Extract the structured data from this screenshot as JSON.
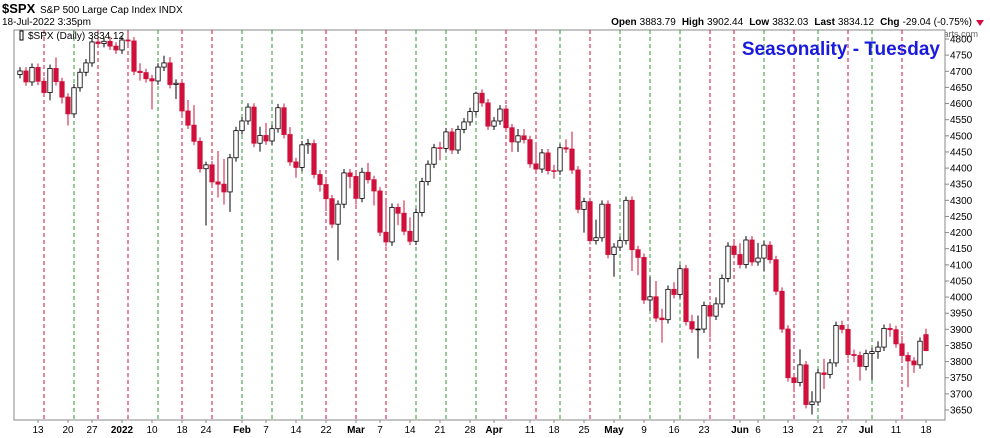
{
  "header": {
    "symbol": "$SPX",
    "name": "S&P 500 Large Cap Index",
    "exchange": "INDX",
    "timestamp": "18-Jul-2022 3:35pm",
    "copyright": "©StockCharts.com",
    "quote": [
      {
        "label": "Open",
        "value": "3883.79"
      },
      {
        "label": "High",
        "value": "3902.44"
      },
      {
        "label": "Low",
        "value": "3832.03"
      },
      {
        "label": "Last",
        "value": "3834.12"
      },
      {
        "label": "Chg",
        "value": "-29.04 (-0.75%)"
      }
    ]
  },
  "chart_data": {
    "type": "candlestick",
    "title": "Seasonality - Tuesday",
    "legend": "$SPX (Daily) 3834.12",
    "up_color": "#000000",
    "down_color": "#d0103a",
    "up_line_color": "#2e9b2e",
    "down_line_color": "#d0103a",
    "ylim": [
      3619,
      4828
    ],
    "yticks": [
      3650,
      3700,
      3750,
      3800,
      3850,
      3900,
      3950,
      4000,
      4050,
      4100,
      4150,
      4200,
      4250,
      4300,
      4350,
      4400,
      4450,
      4500,
      4550,
      4600,
      4650,
      4700,
      4750,
      4800
    ],
    "categories": [
      null,
      null,
      null,
      "13",
      null,
      null,
      null,
      null,
      "20",
      null,
      null,
      null,
      "27",
      null,
      null,
      null,
      null,
      "2022",
      null,
      null,
      null,
      null,
      "10",
      null,
      null,
      null,
      null,
      "18",
      null,
      null,
      null,
      "24",
      null,
      null,
      null,
      null,
      null,
      "Feb",
      null,
      null,
      null,
      "7",
      null,
      null,
      null,
      null,
      "14",
      null,
      null,
      null,
      null,
      "22",
      null,
      null,
      null,
      null,
      "Mar",
      null,
      null,
      null,
      "7",
      null,
      null,
      null,
      null,
      "14",
      null,
      null,
      null,
      null,
      "21",
      null,
      null,
      null,
      null,
      "28",
      null,
      null,
      null,
      "Apr",
      null,
      null,
      null,
      null,
      null,
      "11",
      null,
      null,
      null,
      "18",
      null,
      null,
      null,
      null,
      "25",
      null,
      null,
      null,
      null,
      "May",
      null,
      null,
      null,
      null,
      "9",
      null,
      null,
      null,
      null,
      "16",
      null,
      null,
      null,
      null,
      "23",
      null,
      null,
      null,
      null,
      null,
      "Jun",
      null,
      null,
      "6",
      null,
      null,
      null,
      null,
      "13",
      null,
      null,
      null,
      null,
      "21",
      null,
      null,
      null,
      "27",
      null,
      null,
      null,
      "Jul",
      null,
      null,
      null,
      null,
      "11",
      null,
      null,
      null,
      null,
      "18"
    ],
    "open": [
      4690,
      4701,
      4667,
      4712,
      4669,
      4634,
      4709,
      4668,
      4620,
      4568,
      4649,
      4697,
      4726,
      4791,
      4786,
      4793,
      4778,
      4766,
      4797,
      4794,
      4700,
      4696,
      4677,
      4670,
      4713,
      4726,
      4659,
      4663,
      4577,
      4533,
      4483,
      4398,
      4410,
      4357,
      4350,
      4326,
      4432,
      4516,
      4546,
      4589,
      4477,
      4501,
      4484,
      4522,
      4587,
      4504,
      4419,
      4402,
      4472,
      4476,
      4380,
      4349,
      4305,
      4226,
      4288,
      4385,
      4374,
      4306,
      4387,
      4364,
      4329,
      4201,
      4171,
      4278,
      4260,
      4204,
      4173,
      4262,
      4358,
      4412,
      4463,
      4461,
      4512,
      4456,
      4520,
      4543,
      4575,
      4632,
      4602,
      4530,
      4546,
      4583,
      4525,
      4481,
      4500,
      4488,
      4413,
      4397,
      4447,
      4392,
      4391,
      4463,
      4459,
      4394,
      4272,
      4296,
      4175,
      4184,
      4288,
      4132,
      4155,
      4175,
      4300,
      4147,
      4123,
      3991,
      4001,
      3935,
      3930,
      4024,
      4008,
      4088,
      3924,
      3901,
      3901,
      3974,
      3941,
      3979,
      4058,
      4158,
      4132,
      4101,
      4177,
      4109,
      4121,
      4161,
      4116,
      4018,
      3901,
      3750,
      3735,
      3790,
      3667,
      3675,
      3765,
      3760,
      3796,
      3912,
      3900,
      3822,
      3819,
      3785,
      3825,
      3831,
      3845,
      3903,
      3899,
      3855,
      3819,
      3802,
      3790,
      3883.79
    ],
    "high": [
      4713,
      4713,
      4724,
      4724,
      4681,
      4721,
      4743,
      4680,
      4632,
      4661,
      4709,
      4738,
      4803,
      4808,
      4805,
      4808,
      4790,
      4809,
      4818,
      4806,
      4725,
      4708,
      4689,
      4725,
      4748,
      4744,
      4675,
      4675,
      4611,
      4595,
      4495,
      4420,
      4422,
      4453,
      4428,
      4444,
      4528,
      4558,
      4601,
      4601,
      4528,
      4540,
      4534,
      4599,
      4600,
      4527,
      4432,
      4484,
      4490,
      4488,
      4394,
      4362,
      4317,
      4300,
      4397,
      4397,
      4386,
      4401,
      4416,
      4376,
      4341,
      4299,
      4290,
      4290,
      4300,
      4247,
      4274,
      4370,
      4424,
      4475,
      4481,
      4524,
      4524,
      4532,
      4555,
      4587,
      4637,
      4644,
      4614,
      4558,
      4595,
      4595,
      4537,
      4521,
      4521,
      4500,
      4471,
      4459,
      4459,
      4410,
      4475,
      4489,
      4513,
      4406,
      4308,
      4308,
      4240,
      4300,
      4300,
      4167,
      4187,
      4312,
      4312,
      4159,
      4135,
      4063,
      4050,
      3964,
      4036,
      4046,
      4100,
      4100,
      3945,
      3943,
      3986,
      3986,
      3999,
      4070,
      4170,
      4180,
      4167,
      4189,
      4189,
      4168,
      4173,
      4173,
      4128,
      4030,
      3913,
      3762,
      3838,
      3802,
      3708,
      3777,
      3809,
      3808,
      3924,
      3927,
      3912,
      3837,
      3831,
      3837,
      3843,
      3863,
      3915,
      3918,
      3911,
      3879,
      3829,
      3814,
      3875,
      3902.44
    ],
    "low": [
      4678,
      4655,
      4655,
      4657,
      4622,
      4610,
      4656,
      4600,
      4532,
      4556,
      4637,
      4685,
      4714,
      4774,
      4774,
      4766,
      4754,
      4754,
      4775,
      4688,
      4671,
      4665,
      4582,
      4658,
      4701,
      4647,
      4614,
      4565,
      4521,
      4471,
      4386,
      4222,
      4345,
      4309,
      4287,
      4264,
      4420,
      4504,
      4534,
      4465,
      4451,
      4472,
      4472,
      4510,
      4492,
      4407,
      4370,
      4390,
      4444,
      4368,
      4327,
      4267,
      4214,
      4114,
      4276,
      4337,
      4287,
      4294,
      4352,
      4284,
      4189,
      4157,
      4159,
      4223,
      4192,
      4161,
      4161,
      4250,
      4346,
      4400,
      4424,
      4449,
      4444,
      4444,
      4508,
      4531,
      4563,
      4590,
      4518,
      4518,
      4534,
      4513,
      4450,
      4450,
      4476,
      4401,
      4385,
      4385,
      4380,
      4367,
      4379,
      4447,
      4382,
      4260,
      4200,
      4163,
      4163,
      4172,
      4120,
      4063,
      4143,
      4163,
      4081,
      4068,
      3979,
      3957,
      3923,
      3859,
      3918,
      3996,
      3996,
      3912,
      3889,
      3810,
      3889,
      3875,
      3929,
      3967,
      4046,
      4120,
      4089,
      4089,
      4097,
      4097,
      4081,
      4104,
      4006,
      3889,
      3738,
      3705,
      3723,
      3655,
      3636,
      3663,
      3715,
      3748,
      3784,
      3888,
      3810,
      3798,
      3741,
      3773,
      3743,
      3809,
      3833,
      3877,
      3843,
      3807,
      3721,
      3765,
      3778,
      3832.03
    ],
    "close": [
      4701,
      4667,
      4712,
      4669,
      4634,
      4709,
      4668,
      4620,
      4568,
      4649,
      4697,
      4726,
      4791,
      4786,
      4793,
      4778,
      4766,
      4797,
      4794,
      4700,
      4696,
      4677,
      4670,
      4713,
      4726,
      4659,
      4663,
      4577,
      4533,
      4483,
      4398,
      4410,
      4357,
      4350,
      4326,
      4432,
      4516,
      4546,
      4589,
      4477,
      4501,
      4484,
      4522,
      4587,
      4504,
      4419,
      4402,
      4472,
      4476,
      4380,
      4349,
      4305,
      4226,
      4288,
      4385,
      4374,
      4306,
      4387,
      4364,
      4329,
      4201,
      4171,
      4278,
      4260,
      4204,
      4173,
      4262,
      4358,
      4412,
      4463,
      4461,
      4512,
      4456,
      4520,
      4543,
      4575,
      4632,
      4602,
      4530,
      4546,
      4583,
      4525,
      4481,
      4500,
      4488,
      4413,
      4397,
      4447,
      4392,
      4391,
      4463,
      4459,
      4394,
      4272,
      4296,
      4175,
      4184,
      4288,
      4132,
      4155,
      4175,
      4300,
      4147,
      4123,
      3991,
      4001,
      3935,
      3930,
      4024,
      4008,
      4088,
      3924,
      3901,
      3901,
      3974,
      3941,
      3979,
      4058,
      4158,
      4132,
      4101,
      4177,
      4109,
      4121,
      4161,
      4116,
      4018,
      3901,
      3750,
      3735,
      3790,
      3667,
      3675,
      3765,
      3760,
      3796,
      3912,
      3900,
      3822,
      3819,
      3785,
      3825,
      3831,
      3845,
      3903,
      3899,
      3855,
      3819,
      3802,
      3790,
      3863.16,
      3834.12
    ],
    "seasonality_days": [
      4,
      9,
      13,
      18,
      23,
      27,
      32,
      37,
      42,
      47,
      51,
      56,
      61,
      66,
      71,
      76,
      81,
      86,
      90,
      95,
      100,
      105,
      110,
      115,
      119,
      124,
      129,
      133,
      138,
      142,
      147
    ]
  }
}
